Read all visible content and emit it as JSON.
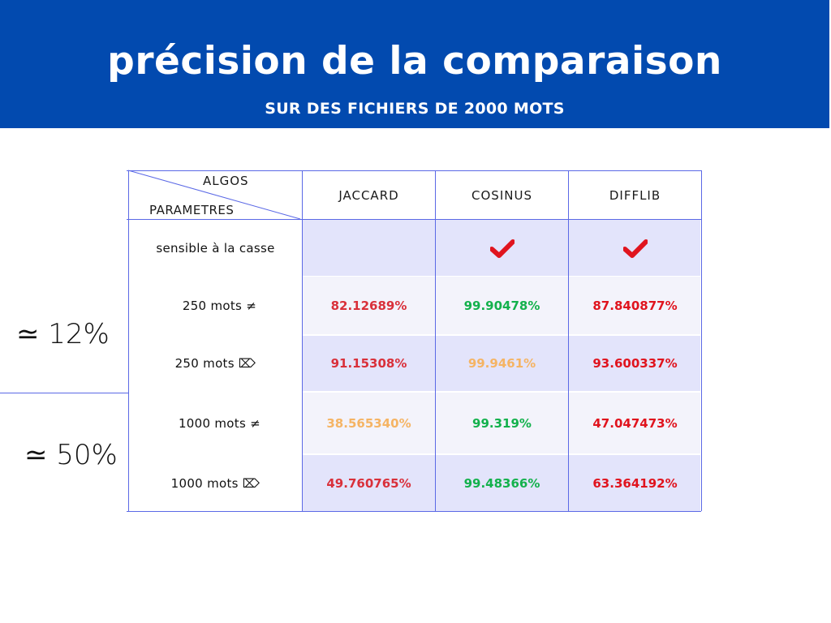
{
  "header": {
    "title": "précision de la comparaison",
    "subtitle": "SUR DES FICHIERS DE 2000 MOTS"
  },
  "table": {
    "corner_top": "ALGOS",
    "corner_bottom": "PARAMETRES",
    "columns": [
      "JACCARD",
      "COSINUS",
      "DIFFLIB"
    ],
    "rows": [
      {
        "param": "sensible à la casse",
        "values": [
          "",
          "✔",
          "✔"
        ]
      },
      {
        "param": "250 mots ≠",
        "values": [
          "82.12689%",
          "99.90478%",
          "87.840877%"
        ]
      },
      {
        "param": "250 mots ⌦",
        "values": [
          "91.15308%",
          "99.9461%",
          "93.600337%"
        ]
      },
      {
        "param": "1000 mots ≠",
        "values": [
          "38.565340%",
          "99.319%",
          "47.047473%"
        ]
      },
      {
        "param": "1000 mots ⌦",
        "values": [
          "49.760765%",
          "99.48366%",
          "63.364192%"
        ]
      }
    ]
  },
  "side_labels": {
    "approx_12": "≃ 12%",
    "approx_50": "≃ 50%"
  },
  "colors": {
    "banner": "#024aaf",
    "red": "#e0141e",
    "green": "#13b14c",
    "orange": "#f5b464",
    "grid": "#5b69e6"
  }
}
